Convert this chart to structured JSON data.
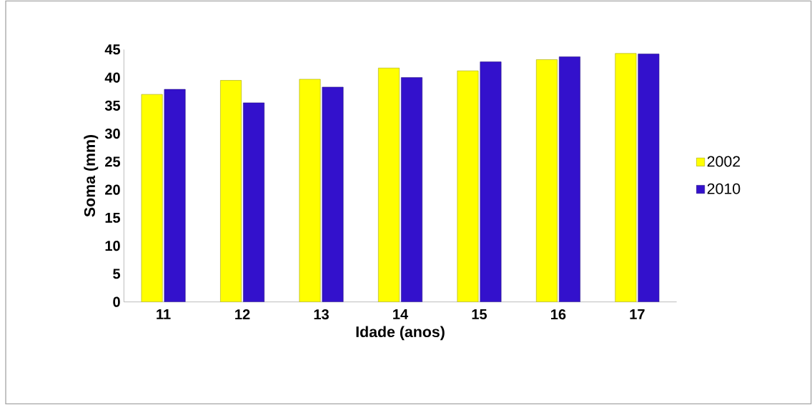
{
  "chart_data": {
    "type": "bar",
    "xlabel": "Idade (anos)",
    "ylabel": "Soma (mm)",
    "categories": [
      "11",
      "12",
      "13",
      "14",
      "15",
      "16",
      "17"
    ],
    "series": [
      {
        "name": "2002",
        "color": "#ffff00",
        "values": [
          37,
          39.5,
          39.7,
          41.7,
          41.2,
          43.2,
          44.3
        ]
      },
      {
        "name": "2010",
        "color": "#3311cc",
        "values": [
          37.9,
          35.5,
          38.3,
          40,
          42.8,
          43.7,
          44.2
        ]
      }
    ],
    "ylim": [
      0,
      45
    ],
    "yticks": [
      0,
      5,
      10,
      15,
      20,
      25,
      30,
      35,
      40,
      45
    ],
    "grid": false,
    "legend": "right"
  }
}
